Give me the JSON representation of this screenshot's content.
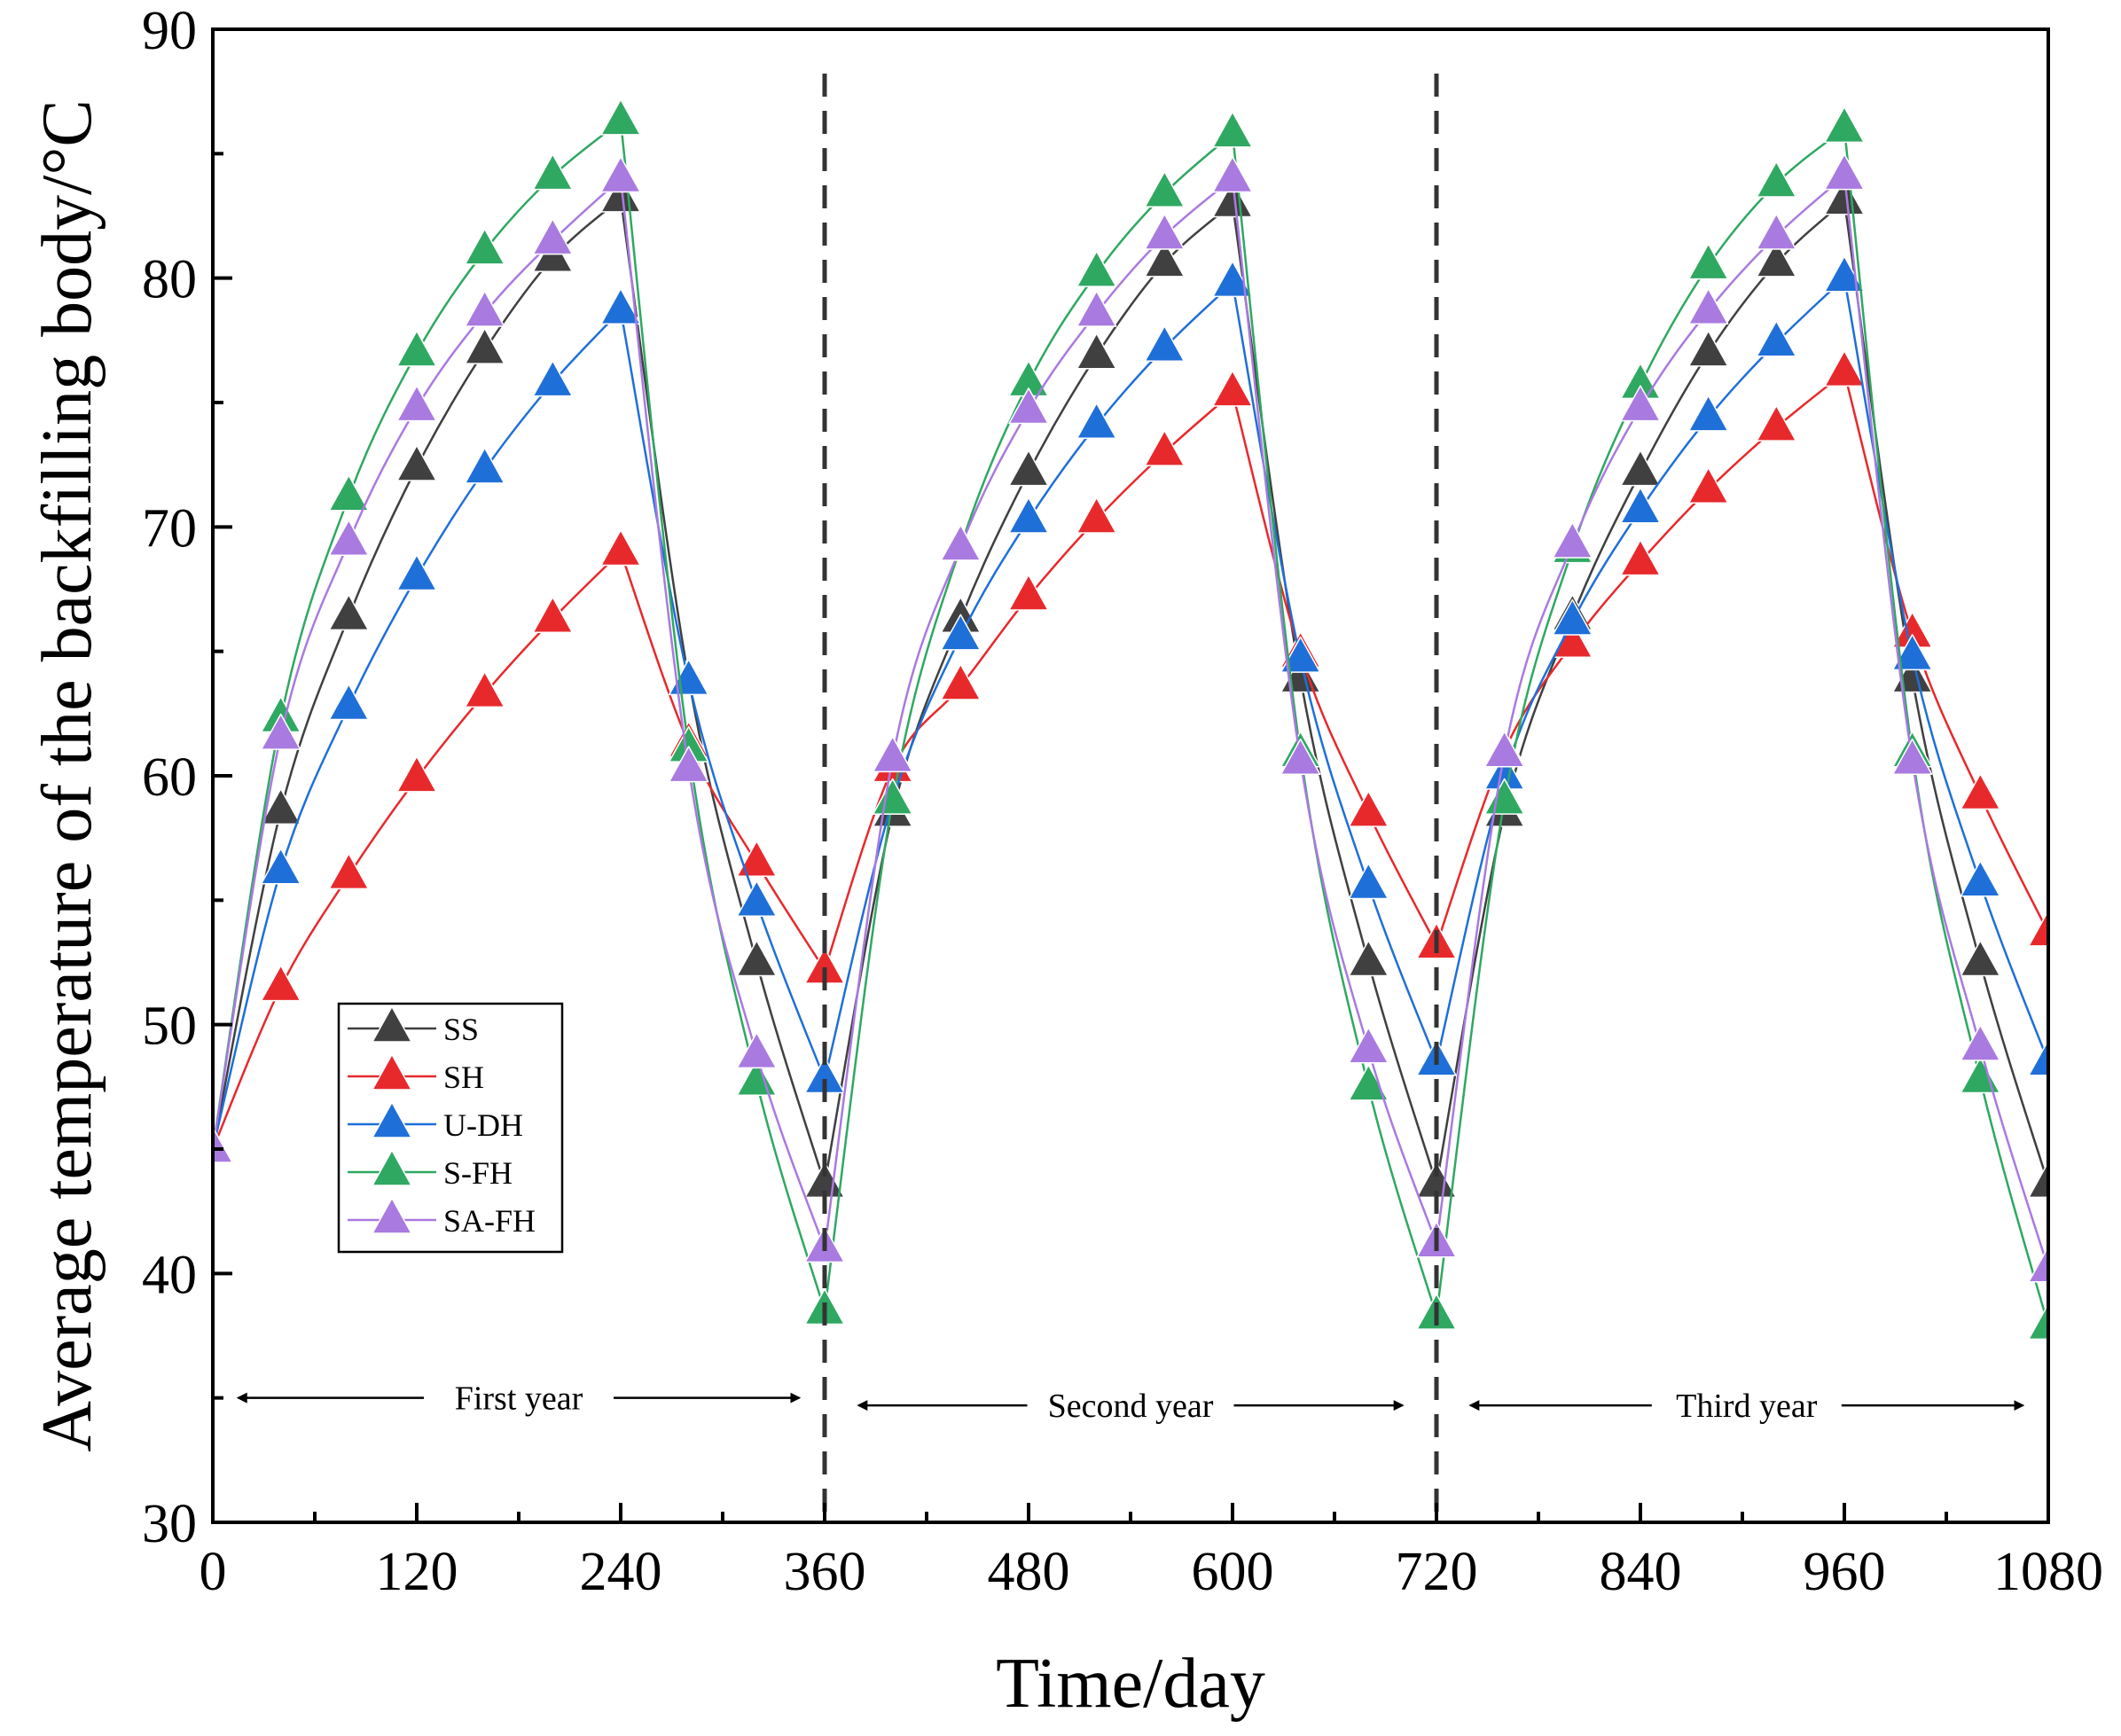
{
  "chart_data": {
    "type": "line",
    "xlabel": "Time/day",
    "ylabel": "Average temperature of the backfilling body/°C",
    "xlim": [
      0,
      1080
    ],
    "ylim": [
      30,
      90
    ],
    "xticks": [
      0,
      120,
      240,
      360,
      480,
      600,
      720,
      840,
      960,
      1080
    ],
    "yticks": [
      30,
      40,
      50,
      60,
      70,
      80,
      90
    ],
    "grid": false,
    "legend_position": "left-middle",
    "vertical_lines": [
      360,
      720
    ],
    "annotations": [
      {
        "text": "First year",
        "x_from": 15,
        "x_to": 345,
        "y": 35
      },
      {
        "text": "Second year",
        "x_from": 380,
        "x_to": 700,
        "y": 34.7
      },
      {
        "text": "Third year",
        "x_from": 740,
        "x_to": 1065,
        "y": 34.7
      }
    ],
    "x": [
      0,
      40,
      80,
      120,
      160,
      200,
      240,
      280,
      320,
      360,
      400,
      440,
      480,
      520,
      560,
      600,
      640,
      680,
      720,
      760,
      800,
      840,
      880,
      920,
      960,
      1000,
      1040,
      1080
    ],
    "series": [
      {
        "name": "SS",
        "color": "#404040",
        "values": [
          45.0,
          58.6,
          66.4,
          72.4,
          77.1,
          80.8,
          83.2,
          63.9,
          52.5,
          43.6,
          58.5,
          66.3,
          72.2,
          76.9,
          80.6,
          83.0,
          63.9,
          52.5,
          43.6,
          58.5,
          66.4,
          72.2,
          77.0,
          80.6,
          83.1,
          63.9,
          52.5,
          43.6
        ]
      },
      {
        "name": "SH",
        "color": "#e8292c",
        "values": [
          45.0,
          51.5,
          56.0,
          59.9,
          63.3,
          66.3,
          69.0,
          61.3,
          56.5,
          52.2,
          60.3,
          63.6,
          67.2,
          70.3,
          73.0,
          75.4,
          64.9,
          58.5,
          53.2,
          61.0,
          65.3,
          68.6,
          71.5,
          74.0,
          76.2,
          65.7,
          59.2,
          53.7
        ]
      },
      {
        "name": "U-DH",
        "color": "#1f6fd8",
        "values": [
          45.0,
          56.2,
          62.8,
          68.0,
          72.3,
          75.8,
          78.7,
          63.8,
          54.9,
          47.8,
          59.0,
          65.6,
          70.3,
          74.1,
          77.2,
          79.8,
          64.7,
          55.6,
          48.5,
          60.0,
          66.2,
          70.7,
          74.4,
          77.4,
          80.0,
          64.8,
          55.7,
          48.5
        ]
      },
      {
        "name": "S-FH",
        "color": "#2fa862",
        "values": [
          45.0,
          62.3,
          71.2,
          77.0,
          81.1,
          84.1,
          86.3,
          61.1,
          47.7,
          38.5,
          59.0,
          69.2,
          75.8,
          80.2,
          83.4,
          85.8,
          60.9,
          47.5,
          38.3,
          59.0,
          69.1,
          75.7,
          80.5,
          83.8,
          86.0,
          60.9,
          47.8,
          37.9
        ]
      },
      {
        "name": "SA-FH",
        "color": "#a97ae0",
        "values": [
          45.0,
          61.6,
          69.4,
          74.8,
          78.6,
          81.5,
          84.0,
          60.3,
          48.8,
          41.0,
          60.7,
          69.2,
          74.7,
          78.6,
          81.7,
          84.0,
          60.6,
          49.0,
          41.2,
          60.9,
          69.3,
          74.8,
          78.7,
          81.7,
          84.1,
          60.6,
          49.1,
          40.2
        ]
      }
    ]
  }
}
